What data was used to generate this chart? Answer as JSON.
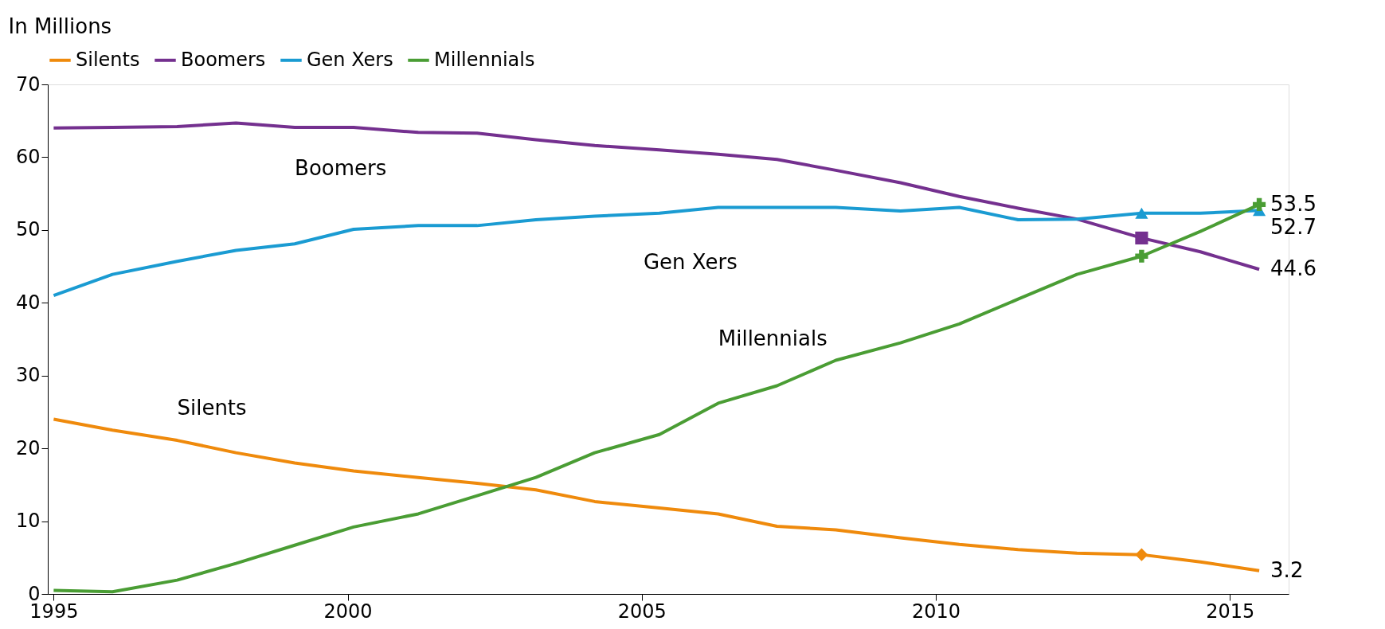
{
  "chart_data": {
    "type": "line",
    "ylabel": "In Millions",
    "x": [
      1995,
      1996.0,
      1997.1,
      1998.1,
      1999.1,
      2000.1,
      2001.2,
      2002.2,
      2003.2,
      2004.2,
      2005.3,
      2006.3,
      2007.3,
      2008.3,
      2009.4,
      2010.4,
      2011.4,
      2012.4,
      2013.5,
      2014.5,
      2015.5
    ],
    "xlim": [
      1994.9,
      2016
    ],
    "xticks": [
      1995,
      2000,
      2005,
      2010,
      2015
    ],
    "ylim": [
      0,
      70
    ],
    "yticks": [
      0,
      10,
      20,
      30,
      40,
      50,
      60,
      70
    ],
    "grid": false,
    "legend": "top",
    "line_style": "solid",
    "series": [
      {
        "name": "Silents",
        "color": "#ef8a0c",
        "values": [
          24,
          22.5,
          21.1,
          19.4,
          18,
          16.9,
          16,
          15.2,
          14.3,
          12.7,
          11.8,
          11,
          9.3,
          8.8,
          7.7,
          6.8,
          6.1,
          5.6,
          5.4,
          4.4,
          3.2
        ],
        "value_labels": [
          null,
          null,
          null,
          null,
          null,
          null,
          null,
          null,
          null,
          null,
          null,
          null,
          null,
          null,
          null,
          null,
          null,
          null,
          null,
          null,
          "3.2"
        ]
      },
      {
        "name": "Boomers",
        "color": "#74308f",
        "values": [
          64,
          64.1,
          64.2,
          64.7,
          64.1,
          64.1,
          63.4,
          63.3,
          62.4,
          61.6,
          61,
          60.4,
          59.7,
          58.2,
          56.5,
          54.6,
          53,
          51.5,
          48.9,
          47,
          44.6
        ],
        "value_labels": [
          null,
          null,
          null,
          null,
          null,
          null,
          null,
          null,
          null,
          null,
          null,
          null,
          null,
          null,
          null,
          null,
          null,
          null,
          null,
          null,
          "44.6"
        ]
      },
      {
        "name": "Gen Xers",
        "color": "#1a9bd2",
        "values": [
          41,
          43.9,
          45.7,
          47.2,
          48.1,
          50.1,
          50.6,
          50.6,
          51.4,
          51.9,
          52.3,
          53.1,
          53.1,
          53.1,
          52.6,
          53.1,
          51.4,
          51.5,
          52.3,
          52.3,
          52.7
        ],
        "value_labels": [
          null,
          null,
          null,
          null,
          null,
          null,
          null,
          null,
          null,
          null,
          null,
          null,
          null,
          null,
          null,
          null,
          null,
          null,
          null,
          null,
          "52.7"
        ]
      },
      {
        "name": "Millennials",
        "color": "#4a9d34",
        "values": [
          0.5,
          0.3,
          1.9,
          4.2,
          6.7,
          9.2,
          11,
          13.5,
          16,
          19.4,
          21.9,
          26.2,
          28.6,
          32.1,
          34.5,
          37.1,
          40.5,
          43.9,
          46.4,
          49.8,
          53.5
        ],
        "value_labels": [
          null,
          null,
          null,
          null,
          null,
          null,
          null,
          null,
          null,
          null,
          null,
          null,
          null,
          null,
          null,
          null,
          null,
          null,
          null,
          null,
          "53.5"
        ]
      },
      {
        "type": "scatter",
        "marker": "diamond",
        "color": "#ef8a0c",
        "values": [
          null,
          null,
          null,
          null,
          null,
          null,
          null,
          null,
          null,
          null,
          null,
          null,
          null,
          null,
          null,
          null,
          null,
          null,
          5.4,
          null,
          null
        ]
      },
      {
        "type": "scatter",
        "marker": "square",
        "color": "#74308f",
        "values": [
          null,
          null,
          null,
          null,
          null,
          null,
          null,
          null,
          null,
          null,
          null,
          null,
          null,
          null,
          null,
          null,
          null,
          null,
          48.9,
          null,
          null
        ]
      },
      {
        "type": "scatter",
        "marker": "triangle",
        "color": "#1a9bd2",
        "values": [
          null,
          null,
          null,
          null,
          null,
          null,
          null,
          null,
          null,
          null,
          null,
          null,
          null,
          null,
          null,
          null,
          null,
          null,
          52.3,
          null,
          52.7
        ]
      },
      {
        "type": "scatter",
        "marker": "cross",
        "color": "#4a9d34",
        "values": [
          null,
          null,
          null,
          null,
          null,
          null,
          null,
          null,
          null,
          null,
          null,
          null,
          null,
          null,
          null,
          null,
          null,
          null,
          46.4,
          null,
          53.5
        ]
      }
    ]
  }
}
